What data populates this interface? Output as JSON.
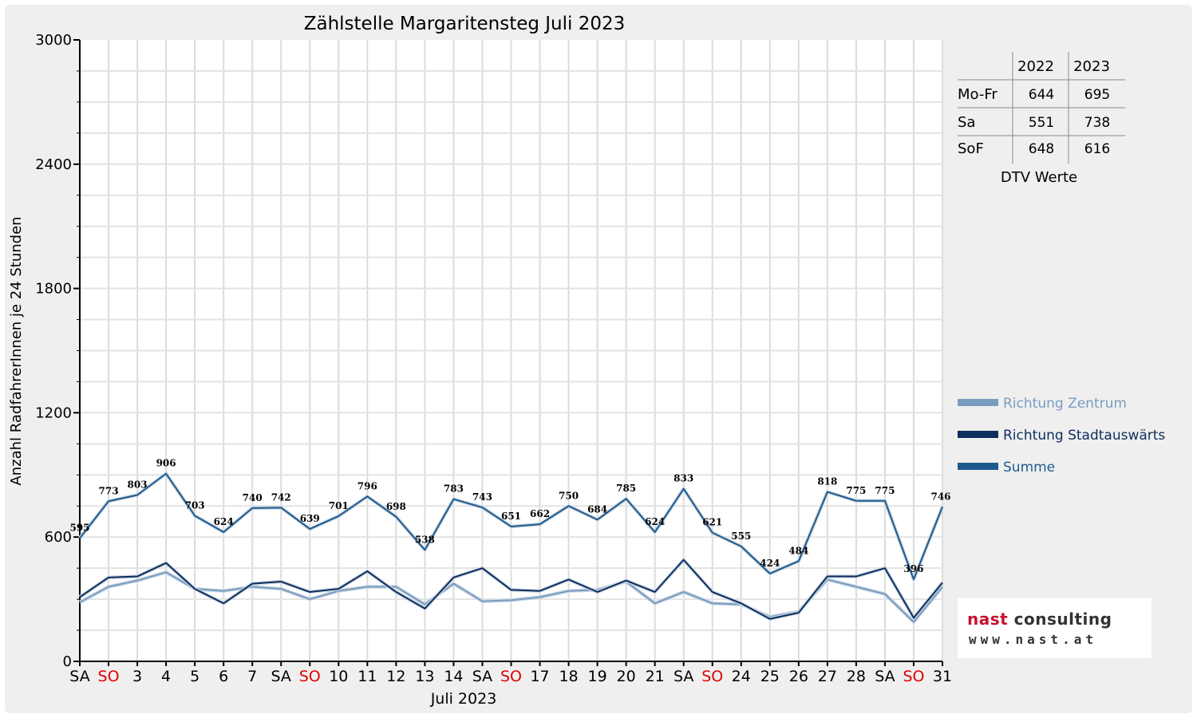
{
  "chart_data": {
    "type": "line",
    "title": "Zählstelle Margaritensteg Juli 2023",
    "ylabel": "Anzahl RadfahrerInnen je 24 Stunden",
    "xlabel": "Juli 2023",
    "ylim": [
      0,
      3000
    ],
    "yticks": [
      "0",
      "600",
      "1200",
      "1800",
      "2400",
      "3000"
    ],
    "categories": [
      "SA",
      "SO",
      "3",
      "4",
      "5",
      "6",
      "7",
      "SA",
      "SO",
      "10",
      "11",
      "12",
      "13",
      "14",
      "SA",
      "SO",
      "17",
      "18",
      "19",
      "20",
      "21",
      "SA",
      "SO",
      "24",
      "25",
      "26",
      "27",
      "28",
      "SA",
      "SO",
      "31"
    ],
    "category_colors": [
      "#000000",
      "#e00000",
      "#000000",
      "#000000",
      "#000000",
      "#000000",
      "#000000",
      "#000000",
      "#e00000",
      "#000000",
      "#000000",
      "#000000",
      "#000000",
      "#000000",
      "#000000",
      "#e00000",
      "#000000",
      "#000000",
      "#000000",
      "#000000",
      "#000000",
      "#000000",
      "#e00000",
      "#000000",
      "#000000",
      "#000000",
      "#000000",
      "#000000",
      "#000000",
      "#e00000",
      "#000000"
    ],
    "grid": true,
    "legend_position": "right",
    "series": [
      {
        "name": "Richtung Zentrum",
        "color": "#7a9cbf",
        "values": [
          285,
          360,
          390,
          430,
          350,
          340,
          360,
          350,
          300,
          340,
          360,
          360,
          275,
          375,
          290,
          295,
          310,
          340,
          345,
          385,
          280,
          335,
          280,
          275,
          215,
          240,
          395,
          360,
          325,
          190,
          360
        ]
      },
      {
        "name": "Richtung Stadtauswärts",
        "color": "#0d2d5c",
        "values": [
          310,
          405,
          410,
          475,
          350,
          280,
          375,
          385,
          335,
          350,
          435,
          335,
          255,
          405,
          450,
          345,
          340,
          395,
          335,
          390,
          335,
          490,
          335,
          280,
          205,
          235,
          410,
          410,
          450,
          210,
          380
        ]
      },
      {
        "name": "Summe",
        "color": "#1f5a8c",
        "values": [
          595,
          773,
          803,
          906,
          703,
          624,
          740,
          742,
          639,
          701,
          796,
          698,
          538,
          783,
          743,
          651,
          662,
          750,
          684,
          785,
          624,
          833,
          621,
          555,
          424,
          484,
          818,
          775,
          775,
          396,
          746
        ]
      }
    ],
    "data_labels": [
      "595",
      "773",
      "803",
      "906",
      "703",
      "624",
      "740",
      "742",
      "639",
      "701",
      "796",
      "698",
      "538",
      "783",
      "743",
      "651",
      "662",
      "750",
      "684",
      "785",
      "624",
      "833",
      "621",
      "555",
      "424",
      "484",
      "818",
      "775",
      "775",
      "396",
      "746"
    ]
  },
  "dtv_table": {
    "caption": "DTV Werte",
    "headers": [
      "2022",
      "2023"
    ],
    "rows": [
      {
        "label": "Mo-Fr",
        "v2022": "644",
        "v2023": "695"
      },
      {
        "label": "Sa",
        "v2022": "551",
        "v2023": "738"
      },
      {
        "label": "SoF",
        "v2022": "648",
        "v2023": "616"
      }
    ]
  },
  "logo": {
    "line1a": "nast",
    "line1b": " consulting",
    "line2": "www.nast.at"
  }
}
